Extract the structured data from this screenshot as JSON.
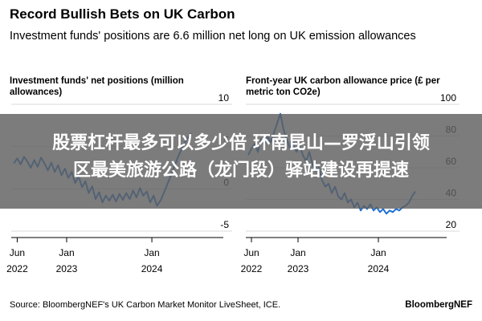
{
  "header": {
    "title": "Record Bullish Bets on UK Carbon",
    "subtitle": "Investment funds' positions are 6.6 million net long on UK emission allowances"
  },
  "overlay": {
    "line1": "股票杠杆最多可以多少倍 环南昆山—罗浮山引领",
    "line2": "区最美旅游公路（龙门段）驿站建设再提速"
  },
  "footer": {
    "source": "Source: BloombergNEF's UK Carbon Market Monitor LiveSheet, ICE.",
    "brand": "BloombergNEF"
  },
  "chart_data": [
    {
      "type": "line",
      "title": "Investment funds' net positions (million allowances)",
      "y_ticks": [
        10,
        5,
        0,
        -5
      ],
      "ylim": [
        -5,
        10
      ],
      "x_ticks": [
        {
          "value": 2022.42,
          "line1": "Jun",
          "line2": "2022"
        },
        {
          "value": 2023.0,
          "line1": "Jan",
          "line2": "2023"
        },
        {
          "value": 2024.0,
          "line1": "Jan",
          "line2": "2024"
        }
      ],
      "xlim": [
        2022.35,
        2024.65
      ],
      "color": "#1f6fd1",
      "grid": true,
      "series": [
        {
          "points": [
            [
              2022.38,
              3.0
            ],
            [
              2022.42,
              3.6
            ],
            [
              2022.46,
              2.9
            ],
            [
              2022.5,
              3.8
            ],
            [
              2022.54,
              3.2
            ],
            [
              2022.58,
              2.5
            ],
            [
              2022.62,
              3.4
            ],
            [
              2022.66,
              2.6
            ],
            [
              2022.7,
              3.7
            ],
            [
              2022.74,
              3.0
            ],
            [
              2022.78,
              2.2
            ],
            [
              2022.82,
              3.1
            ],
            [
              2022.86,
              2.0
            ],
            [
              2022.9,
              2.8
            ],
            [
              2022.94,
              1.6
            ],
            [
              2022.98,
              2.4
            ],
            [
              2023.02,
              1.3
            ],
            [
              2023.06,
              2.0
            ],
            [
              2023.1,
              0.7
            ],
            [
              2023.14,
              1.5
            ],
            [
              2023.18,
              0.2
            ],
            [
              2023.22,
              0.9
            ],
            [
              2023.26,
              -0.5
            ],
            [
              2023.3,
              0.3
            ],
            [
              2023.34,
              -1.2
            ],
            [
              2023.38,
              -0.4
            ],
            [
              2023.42,
              -1.6
            ],
            [
              2023.46,
              -0.8
            ],
            [
              2023.5,
              -1.4
            ],
            [
              2023.54,
              -0.7
            ],
            [
              2023.58,
              -1.5
            ],
            [
              2023.62,
              -0.6
            ],
            [
              2023.66,
              -1.3
            ],
            [
              2023.7,
              -0.5
            ],
            [
              2023.74,
              -1.2
            ],
            [
              2023.78,
              -0.2
            ],
            [
              2023.82,
              -1.0
            ],
            [
              2023.86,
              0.1
            ],
            [
              2023.9,
              -0.8
            ],
            [
              2023.94,
              -0.3
            ],
            [
              2023.98,
              -1.6
            ],
            [
              2024.02,
              -0.8
            ],
            [
              2024.06,
              -2.0
            ],
            [
              2024.1,
              -1.4
            ],
            [
              2024.14,
              -0.5
            ],
            [
              2024.18,
              0.5
            ],
            [
              2024.22,
              1.5
            ],
            [
              2024.26,
              2.5
            ],
            [
              2024.3,
              3.6
            ],
            [
              2024.34,
              4.5
            ],
            [
              2024.38,
              5.4
            ],
            [
              2024.42,
              6.0
            ],
            [
              2024.46,
              6.6
            ]
          ]
        }
      ]
    },
    {
      "type": "line",
      "title": "Front-year UK carbon allowance price (£ per metric ton CO2e)",
      "y_ticks": [
        100,
        80,
        60,
        40,
        20
      ],
      "ylim": [
        20,
        100
      ],
      "x_ticks": [
        {
          "value": 2022.42,
          "line1": "Jun",
          "line2": "2022"
        },
        {
          "value": 2023.0,
          "line1": "Jan",
          "line2": "2023"
        },
        {
          "value": 2024.0,
          "line1": "Jan",
          "line2": "2024"
        }
      ],
      "xlim": [
        2022.35,
        2024.65
      ],
      "color": "#1f6fd1",
      "grid": true,
      "series": [
        {
          "points": [
            [
              2022.38,
              68
            ],
            [
              2022.42,
              72
            ],
            [
              2022.46,
              75
            ],
            [
              2022.5,
              70
            ],
            [
              2022.54,
              78
            ],
            [
              2022.58,
              74
            ],
            [
              2022.62,
              80
            ],
            [
              2022.66,
              76
            ],
            [
              2022.7,
              82
            ],
            [
              2022.74,
              88
            ],
            [
              2022.78,
              94
            ],
            [
              2022.82,
              84
            ],
            [
              2022.86,
              78
            ],
            [
              2022.9,
              72
            ],
            [
              2022.94,
              76
            ],
            [
              2022.98,
              70
            ],
            [
              2023.02,
              74
            ],
            [
              2023.06,
              68
            ],
            [
              2023.1,
              64
            ],
            [
              2023.14,
              70
            ],
            [
              2023.18,
              62
            ],
            [
              2023.22,
              58
            ],
            [
              2023.26,
              60
            ],
            [
              2023.3,
              52
            ],
            [
              2023.34,
              48
            ],
            [
              2023.38,
              50
            ],
            [
              2023.42,
              44
            ],
            [
              2023.46,
              48
            ],
            [
              2023.5,
              42
            ],
            [
              2023.54,
              40
            ],
            [
              2023.58,
              44
            ],
            [
              2023.62,
              38
            ],
            [
              2023.66,
              40
            ],
            [
              2023.7,
              35
            ],
            [
              2023.74,
              38
            ],
            [
              2023.78,
              33
            ],
            [
              2023.82,
              36
            ],
            [
              2023.86,
              34
            ],
            [
              2023.9,
              37
            ],
            [
              2023.94,
              33
            ],
            [
              2023.98,
              35
            ],
            [
              2024.02,
              32
            ],
            [
              2024.06,
              34
            ],
            [
              2024.1,
              31
            ],
            [
              2024.14,
              33
            ],
            [
              2024.18,
              32
            ],
            [
              2024.22,
              34
            ],
            [
              2024.26,
              33
            ],
            [
              2024.3,
              35
            ],
            [
              2024.34,
              36
            ],
            [
              2024.38,
              38
            ],
            [
              2024.42,
              42
            ],
            [
              2024.46,
              45
            ]
          ]
        }
      ]
    }
  ]
}
